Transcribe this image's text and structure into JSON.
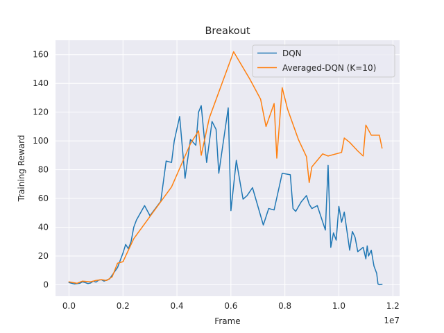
{
  "chart_data": {
    "type": "line",
    "title": "Breakout",
    "xlabel": "Frame",
    "ylabel": "Training Reward",
    "x_offset_label": "1e7",
    "xlim": [
      -0.05,
      1.225
    ],
    "ylim": [
      -8,
      170
    ],
    "xticks": [
      0.0,
      0.2,
      0.4,
      0.6,
      0.8,
      1.0,
      1.2
    ],
    "xtick_labels": [
      "0.0",
      "0.2",
      "0.4",
      "0.6",
      "0.8",
      "1.0",
      "1.2"
    ],
    "yticks": [
      0,
      20,
      40,
      60,
      80,
      100,
      120,
      140,
      160
    ],
    "ytick_labels": [
      "0",
      "20",
      "40",
      "60",
      "80",
      "100",
      "120",
      "140",
      "160"
    ],
    "grid": true,
    "legend_position": "top-right",
    "series": [
      {
        "name": "DQN",
        "color": "#1f77b4",
        "x": [
          0.0,
          0.02,
          0.04,
          0.05,
          0.06,
          0.07,
          0.08,
          0.09,
          0.1,
          0.11,
          0.12,
          0.13,
          0.15,
          0.18,
          0.2,
          0.21,
          0.22,
          0.23,
          0.24,
          0.25,
          0.28,
          0.3,
          0.34,
          0.36,
          0.38,
          0.39,
          0.41,
          0.43,
          0.45,
          0.47,
          0.48,
          0.49,
          0.51,
          0.53,
          0.545,
          0.555,
          0.59,
          0.6,
          0.62,
          0.635,
          0.645,
          0.66,
          0.68,
          0.72,
          0.74,
          0.76,
          0.79,
          0.82,
          0.83,
          0.84,
          0.86,
          0.88,
          0.89,
          0.9,
          0.92,
          0.95,
          0.96,
          0.97,
          0.98,
          0.99,
          1.0,
          1.01,
          1.015,
          1.02,
          1.04,
          1.05,
          1.06,
          1.07,
          1.09,
          1.1,
          1.105,
          1.11,
          1.12,
          1.13,
          1.14,
          1.145,
          1.15,
          1.16
        ],
        "y": [
          1.5,
          0.5,
          1.0,
          2.0,
          1.5,
          0.8,
          1.2,
          2.5,
          1.8,
          3.2,
          3.5,
          2.5,
          4.0,
          12.0,
          22.0,
          28.0,
          25.0,
          30.0,
          40.0,
          45.0,
          55.0,
          48.0,
          58.0,
          86.0,
          85.0,
          100.0,
          117.0,
          74.0,
          101.0,
          97.0,
          120.0,
          124.5,
          85.0,
          113.5,
          108.0,
          77.5,
          123.0,
          51.5,
          86.5,
          70.0,
          59.5,
          62.0,
          67.5,
          41.5,
          53.0,
          52.0,
          77.5,
          76.5,
          53.0,
          51.0,
          57.5,
          62.0,
          56.0,
          53.0,
          55.0,
          38.0,
          83.0,
          26.0,
          36.0,
          31.0,
          54.5,
          43.5,
          47.0,
          50.5,
          24.0,
          37.0,
          33.0,
          23.0,
          26.0,
          18.0,
          27.0,
          20.0,
          24.0,
          13.0,
          8.0,
          0.5,
          0.0,
          0.3
        ]
      },
      {
        "name": "Averaged-DQN (K=10)",
        "color": "#ff7f0e",
        "x": [
          0.0,
          0.03,
          0.05,
          0.08,
          0.1,
          0.12,
          0.14,
          0.16,
          0.18,
          0.2,
          0.24,
          0.38,
          0.45,
          0.48,
          0.49,
          0.52,
          0.61,
          0.67,
          0.71,
          0.73,
          0.76,
          0.77,
          0.79,
          0.81,
          0.85,
          0.88,
          0.89,
          0.9,
          0.94,
          0.96,
          1.01,
          1.02,
          1.04,
          1.07,
          1.09,
          1.1,
          1.12,
          1.15,
          1.16
        ],
        "y": [
          2.0,
          1.0,
          2.5,
          2.0,
          3.0,
          3.5,
          3.0,
          5.5,
          15.0,
          16.0,
          32.0,
          68.0,
          98.0,
          107.0,
          90.0,
          116.0,
          162.0,
          143.0,
          129.0,
          110.0,
          126.0,
          88.0,
          137.0,
          122.0,
          101.0,
          89.0,
          71.0,
          82.0,
          91.0,
          89.5,
          92.0,
          102.0,
          99.0,
          93.0,
          89.5,
          111.0,
          104.0,
          104.0,
          95.0
        ]
      }
    ]
  }
}
